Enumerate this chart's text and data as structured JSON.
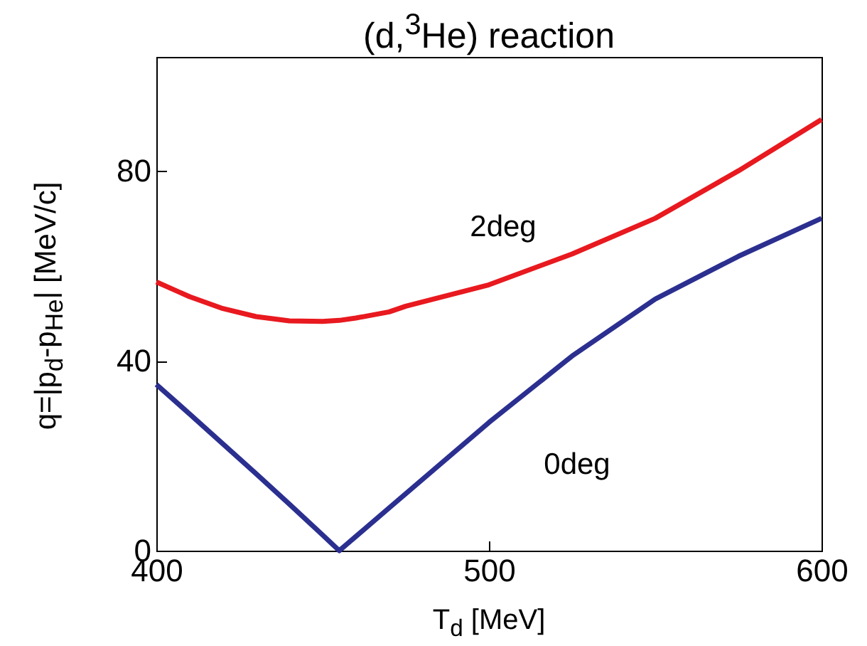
{
  "chart_data": {
    "type": "line",
    "title": "(d,$^{3}$He) reaction",
    "xlabel": "T$_{d}$ [MeV]",
    "ylabel": "q=|p$_{d}$-p$_{He}$|  [MeV/c]",
    "x": [
      400,
      410,
      420,
      430,
      440,
      450,
      455,
      460,
      470,
      475,
      500,
      525,
      550,
      575,
      600
    ],
    "series": [
      {
        "name": "2deg",
        "color": "#e8191f",
        "values": [
          56.6,
          53.5,
          51,
          49.3,
          48.4,
          48.3,
          48.5,
          49,
          50.3,
          51.5,
          56,
          62.5,
          70,
          80,
          90.8
        ]
      },
      {
        "name": "0deg",
        "color": "#2b2f8f",
        "values": [
          35,
          28.8,
          22.5,
          16.2,
          9.8,
          3.3,
          0,
          3,
          9,
          12,
          27,
          41,
          53,
          62,
          70
        ]
      }
    ],
    "xlim": [
      400,
      600
    ],
    "xticks": [
      400,
      500,
      600
    ],
    "ylim": [
      0,
      104
    ],
    "yticks": [
      0,
      40,
      80
    ],
    "grid": false,
    "legend": false,
    "marker": "none",
    "line_style": "solid"
  }
}
